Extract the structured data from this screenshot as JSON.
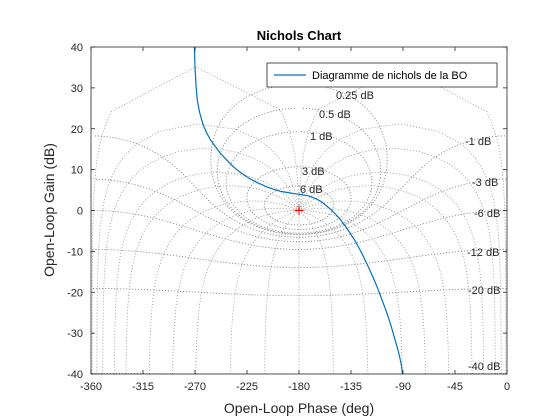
{
  "chart_data": {
    "type": "line",
    "title": "Nichols Chart",
    "xlabel": "Open-Loop Phase (deg)",
    "ylabel": "Open-Loop Gain (dB)",
    "xlim": [
      -360,
      0
    ],
    "ylim": [
      -40,
      40
    ],
    "xticks": [
      "-360",
      "-315",
      "-270",
      "-225",
      "-180",
      "-135",
      "-90",
      "-45",
      "0"
    ],
    "xtick_values": [
      -360,
      -315,
      -270,
      -225,
      -180,
      -135,
      -90,
      -45,
      0
    ],
    "yticks": [
      "-40",
      "-30",
      "-20",
      "-10",
      "0",
      "10",
      "20",
      "30",
      "40"
    ],
    "ytick_values": [
      -40,
      -30,
      -20,
      -10,
      0,
      10,
      20,
      30,
      40
    ],
    "legend": {
      "position": "top-right",
      "entries": [
        "Diagramme de nichols de la BO"
      ]
    },
    "series": [
      {
        "name": "Diagramme de nichols de la BO",
        "color": "#0072bd",
        "x": [
          -270.5,
          -270,
          -269,
          -268,
          -266,
          -263,
          -260,
          -256,
          -252,
          -248,
          -244,
          -240,
          -236,
          -232,
          -228,
          -224,
          -220,
          -216,
          -212,
          -208,
          -204,
          -200,
          -196,
          -192,
          -188,
          -184,
          -180,
          -176,
          -172,
          -168,
          -164,
          -160,
          -156,
          -152,
          -148,
          -144,
          -140,
          -136,
          -132,
          -128,
          -124,
          -120,
          -116,
          -112,
          -108,
          -104,
          -100,
          -97,
          -94,
          -92,
          -91,
          -90.5
        ],
        "y": [
          40,
          35,
          30,
          27,
          24,
          21,
          19,
          17,
          15.5,
          14,
          12.8,
          11.6,
          10.5,
          9.6,
          8.8,
          8.0,
          7.4,
          6.8,
          6.3,
          5.8,
          5.4,
          5.0,
          4.7,
          4.5,
          4.3,
          4.1,
          4.0,
          3.8,
          3.6,
          3.2,
          2.7,
          2.0,
          1.1,
          0.1,
          -1.0,
          -2.3,
          -3.8,
          -5.4,
          -7.2,
          -9.2,
          -11.4,
          -13.8,
          -16.3,
          -19.0,
          -22.0,
          -25.0,
          -28.5,
          -31.5,
          -34.5,
          -37.0,
          -38.5,
          -40
        ]
      }
    ],
    "grid": {
      "enabled": true,
      "m_contours_db": [
        0.25,
        0.5,
        1,
        3,
        6,
        -1,
        -3,
        -6,
        -12,
        -20,
        -40
      ],
      "m_labels": [
        "0.25 dB",
        "0.5 dB",
        "1 dB",
        "3 dB",
        "6 dB",
        "-1 dB",
        "-3 dB",
        "-6 dB",
        "-12 dB",
        "-20 dB",
        "-40 dB"
      ],
      "critical_point": {
        "x": -180,
        "y": 0,
        "marker": "+",
        "color": "#ff0000"
      }
    }
  }
}
